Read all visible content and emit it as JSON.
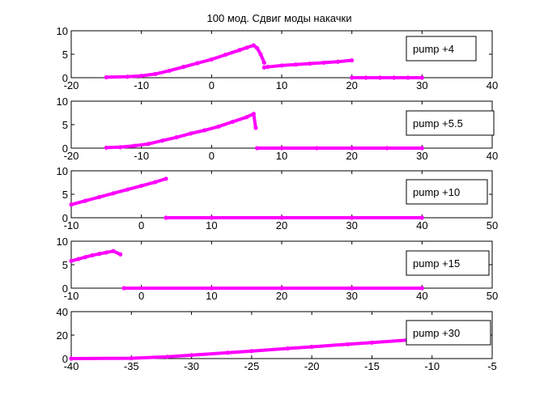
{
  "title": "100 мод. Сдвиг моды накачки",
  "colors": {
    "marker": "#ff00ff",
    "axes": "#000000",
    "background": "#ffffff"
  },
  "chart_data": [
    {
      "type": "scatter",
      "legend": "pump +4",
      "legend_placement": "top-right",
      "grid": false,
      "xlim": [
        -20,
        40
      ],
      "ylim": [
        0,
        10
      ],
      "xticks": [
        "-20",
        "-10",
        "0",
        "10",
        "20",
        "30",
        "40"
      ],
      "yticks": [
        "0",
        "5",
        "10"
      ],
      "segments": [
        {
          "x": [
            -15,
            -12,
            -10,
            -8,
            -6,
            -4,
            -2,
            0,
            2,
            4,
            5,
            6,
            6.5,
            7,
            7.5
          ],
          "y": [
            0.1,
            0.2,
            0.4,
            0.8,
            1.5,
            2.3,
            3.1,
            3.9,
            4.9,
            5.9,
            6.4,
            6.9,
            6.3,
            5.0,
            3.2
          ]
        },
        {
          "x": [
            7.5,
            8,
            10,
            12,
            14,
            16,
            18,
            20
          ],
          "y": [
            2.2,
            2.3,
            2.6,
            2.8,
            3.0,
            3.2,
            3.4,
            3.7
          ]
        },
        {
          "x": [
            20,
            22,
            24,
            26,
            28,
            30
          ],
          "y": [
            0,
            0,
            0,
            0,
            0,
            0
          ]
        }
      ]
    },
    {
      "type": "scatter",
      "legend": "pump +5.5",
      "legend_placement": "top-right",
      "grid": false,
      "xlim": [
        -20,
        40
      ],
      "ylim": [
        0,
        10
      ],
      "xticks": [
        "-20",
        "-10",
        "0",
        "10",
        "20",
        "30",
        "40"
      ],
      "yticks": [
        "0",
        "5",
        "10"
      ],
      "segments": [
        {
          "x": [
            -15,
            -13,
            -11,
            -9,
            -7,
            -5,
            -3,
            -1,
            1,
            3,
            5,
            6,
            6.3
          ],
          "y": [
            0.1,
            0.2,
            0.5,
            0.9,
            1.6,
            2.3,
            3.1,
            3.8,
            4.6,
            5.6,
            6.6,
            7.3,
            4.3
          ]
        },
        {
          "x": [
            6.5,
            10,
            15,
            20,
            25,
            30
          ],
          "y": [
            0,
            0,
            0,
            0,
            0,
            0
          ]
        }
      ]
    },
    {
      "type": "scatter",
      "legend": "pump +10",
      "legend_placement": "top-right",
      "grid": false,
      "xlim": [
        -10,
        50
      ],
      "ylim": [
        0,
        10
      ],
      "xticks": [
        "-10",
        "0",
        "10",
        "20",
        "30",
        "40",
        "50"
      ],
      "yticks": [
        "0",
        "5",
        "10"
      ],
      "segments": [
        {
          "x": [
            -10,
            -8,
            -6,
            -4,
            -2,
            0,
            2,
            3.5
          ],
          "y": [
            2.8,
            3.6,
            4.4,
            5.2,
            6.0,
            6.8,
            7.6,
            8.3
          ]
        },
        {
          "x": [
            3.5,
            10,
            20,
            30,
            40
          ],
          "y": [
            0,
            0,
            0,
            0,
            0
          ]
        }
      ]
    },
    {
      "type": "scatter",
      "legend": "pump +15",
      "legend_placement": "top-right",
      "grid": false,
      "xlim": [
        -10,
        50
      ],
      "ylim": [
        0,
        10
      ],
      "xticks": [
        "-10",
        "0",
        "10",
        "20",
        "30",
        "40",
        "50"
      ],
      "yticks": [
        "0",
        "5",
        "10"
      ],
      "segments": [
        {
          "x": [
            -10,
            -9,
            -8,
            -7,
            -6,
            -5,
            -4,
            -3
          ],
          "y": [
            5.8,
            6.2,
            6.6,
            7.0,
            7.3,
            7.6,
            7.9,
            7.2
          ]
        },
        {
          "x": [
            -2.5,
            10,
            20,
            30,
            40
          ],
          "y": [
            0,
            0,
            0,
            0,
            0
          ]
        }
      ]
    },
    {
      "type": "scatter",
      "legend": "pump +30",
      "legend_placement": "top-right",
      "grid": false,
      "xlim": [
        -40,
        -5
      ],
      "ylim": [
        0,
        40
      ],
      "xticks": [
        "-40",
        "-35",
        "-30",
        "-25",
        "-20",
        "-15",
        "-10",
        "-5"
      ],
      "yticks": [
        "0",
        "20",
        "40"
      ],
      "segments": [
        {
          "x": [
            -40,
            -35,
            -32,
            -30,
            -27,
            -25,
            -22,
            -20,
            -17,
            -15,
            -12,
            -10
          ],
          "y": [
            0,
            0.3,
            1.5,
            2.9,
            5.0,
            6.4,
            8.6,
            10.0,
            12.2,
            13.6,
            15.8,
            20.8
          ]
        }
      ]
    }
  ]
}
